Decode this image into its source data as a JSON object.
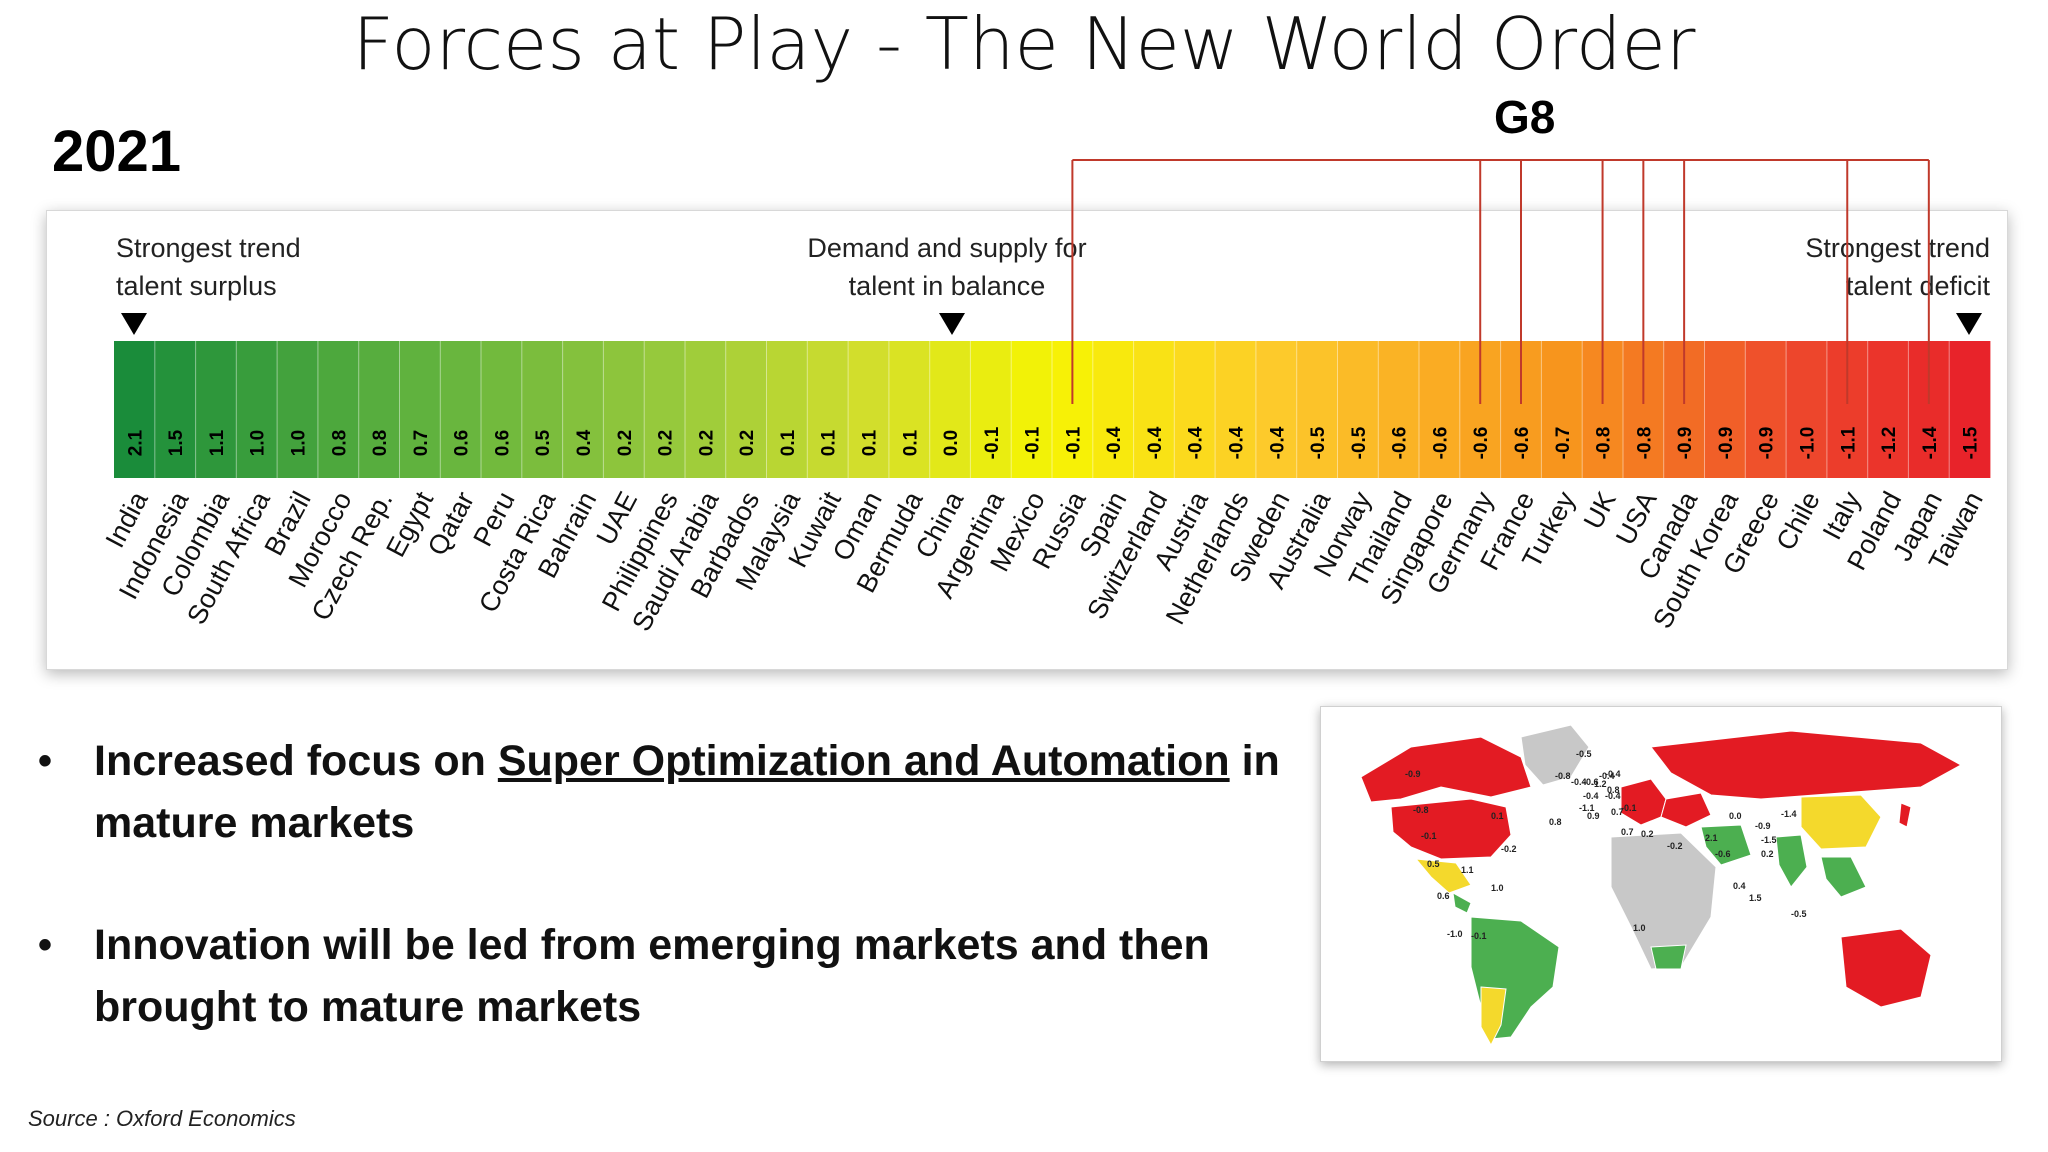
{
  "slide": {
    "title": "Forces at Play - The New World Order",
    "year": "2021",
    "g8_label": "G8",
    "source": "Source : Oxford Economics"
  },
  "chart_data": {
    "type": "bar",
    "labels": {
      "left": [
        "Strongest trend",
        "talent surplus"
      ],
      "center": [
        "Demand and supply for",
        "talent in balance"
      ],
      "right": [
        "Strongest trend",
        "talent deficit"
      ]
    },
    "categories": [
      "India",
      "Indonesia",
      "Colombia",
      "South Africa",
      "Brazil",
      "Morocco",
      "Czech Rep.",
      "Egypt",
      "Qatar",
      "Peru",
      "Costa Rica",
      "Bahrain",
      "UAE",
      "Philippines",
      "Saudi Arabia",
      "Barbados",
      "Malaysia",
      "Kuwait",
      "Oman",
      "Bermuda",
      "China",
      "Argentina",
      "Mexico",
      "Russia",
      "Spain",
      "Switzerland",
      "Austria",
      "Netherlands",
      "Sweden",
      "Australia",
      "Norway",
      "Thailand",
      "Singapore",
      "Germany",
      "France",
      "Turkey",
      "UK",
      "USA",
      "Canada",
      "South Korea",
      "Greece",
      "Chile",
      "Italy",
      "Poland",
      "Japan",
      "Taiwan"
    ],
    "value_labels": [
      "2.1",
      "1.5",
      "1.1",
      "1.0",
      "1.0",
      "0.8",
      "0.8",
      "0.7",
      "0.6",
      "0.6",
      "0.5",
      "0.4",
      "0.2",
      "0.2",
      "0.2",
      "0.2",
      "0.1",
      "0.1",
      "0.1",
      "0.1",
      "0.0",
      "-0.1",
      "-0.1",
      "-0.1",
      "-0.4",
      "-0.4",
      "-0.4",
      "-0.4",
      "-0.4",
      "-0.5",
      "-0.5",
      "-0.6",
      "-0.6",
      "-0.6",
      "-0.6",
      "-0.7",
      "-0.8",
      "-0.8",
      "-0.9",
      "-0.9",
      "-0.9",
      "-1.0",
      "-1.1",
      "-1.2",
      "-1.4",
      "-1.5"
    ],
    "g8_members": [
      "Russia",
      "Germany",
      "France",
      "UK",
      "USA",
      "Canada",
      "Italy",
      "Japan"
    ],
    "colors": {
      "surplus": "#1a8c3a",
      "balance": "#f7f400",
      "deficit": "#e8232a",
      "g8_line": "#c0392b"
    }
  },
  "bullets": [
    {
      "prefix": "Increased focus on ",
      "emph": "Super Optimization and Automation",
      "suffix": " in mature markets"
    },
    {
      "text": "Innovation will be led from emerging markets and then brought to mature markets"
    }
  ],
  "map": {
    "colors": {
      "deficit": "#e31b23",
      "surplus": "#4caf50",
      "balance": "#f4d92c",
      "nodata": "#c8c8c8"
    },
    "labels": [
      "-0.9",
      "-0.8",
      "-0.1",
      "0.1",
      "-0.2",
      "0.5",
      "1.1",
      "1.0",
      "0.6",
      "-1.0",
      "-0.1",
      "-0.5",
      "-0.8",
      "-0.4",
      "-0.6",
      "-1.2",
      "-0.4",
      "-0.4",
      "0.8",
      "-0.4",
      "-0.4",
      "-1.1",
      "0.9",
      "0.7",
      "-0.1",
      "0.8",
      "0.7",
      "0.2",
      "-0.2",
      "2.1",
      "0.0",
      "-1.4",
      "-0.9",
      "-1.5",
      "-0.6",
      "0.2",
      "0.4",
      "1.5",
      "-0.5",
      "1.0"
    ]
  }
}
